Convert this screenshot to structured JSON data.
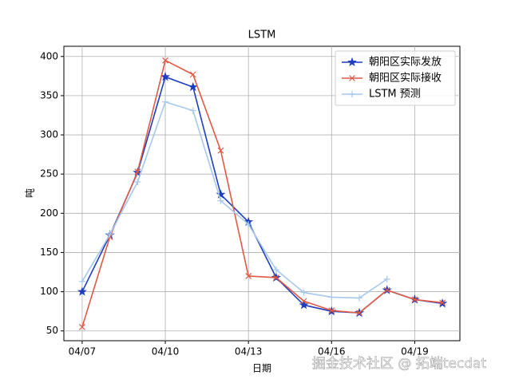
{
  "chart_data": {
    "type": "line",
    "title": "LSTM",
    "x_label": "日期",
    "y_label": "吨",
    "x": [
      7,
      8,
      9,
      10,
      11,
      12,
      13,
      14,
      15,
      16,
      17,
      18,
      19,
      20
    ],
    "xlim": [
      6.34,
      20.63
    ],
    "xticks": [
      {
        "value": 7,
        "label": "04/07"
      },
      {
        "value": 10,
        "label": "04/10"
      },
      {
        "value": 13,
        "label": "04/13"
      },
      {
        "value": 16,
        "label": "04/16"
      },
      {
        "value": 19,
        "label": "04/19"
      }
    ],
    "ylim": [
      37.5,
      413
    ],
    "yticks": [
      50,
      100,
      150,
      200,
      250,
      300,
      350,
      400
    ],
    "grid": true,
    "legend": "upper right",
    "series": [
      {
        "name": "朝阳区实际发放",
        "color": "#1f3fbf",
        "marker": "star",
        "values": [
          100,
          172,
          252,
          374,
          361,
          224,
          189,
          118,
          83,
          75,
          73,
          102,
          90,
          85
        ]
      },
      {
        "name": "朝阳区实际接收",
        "color": "#e05a45",
        "marker": "x",
        "values": [
          55,
          170,
          253,
          395,
          377,
          280,
          120,
          118,
          88,
          76,
          73,
          102,
          90,
          86
        ]
      },
      {
        "name": "LSTM 预测",
        "color": "#a6c8ec",
        "marker": "plus",
        "values": [
          113,
          173,
          240,
          342,
          331,
          216,
          186,
          128,
          99,
          93,
          92,
          116,
          null,
          null
        ]
      }
    ],
    "watermark": "掘金技术社区 @ 拓端tecdat"
  }
}
